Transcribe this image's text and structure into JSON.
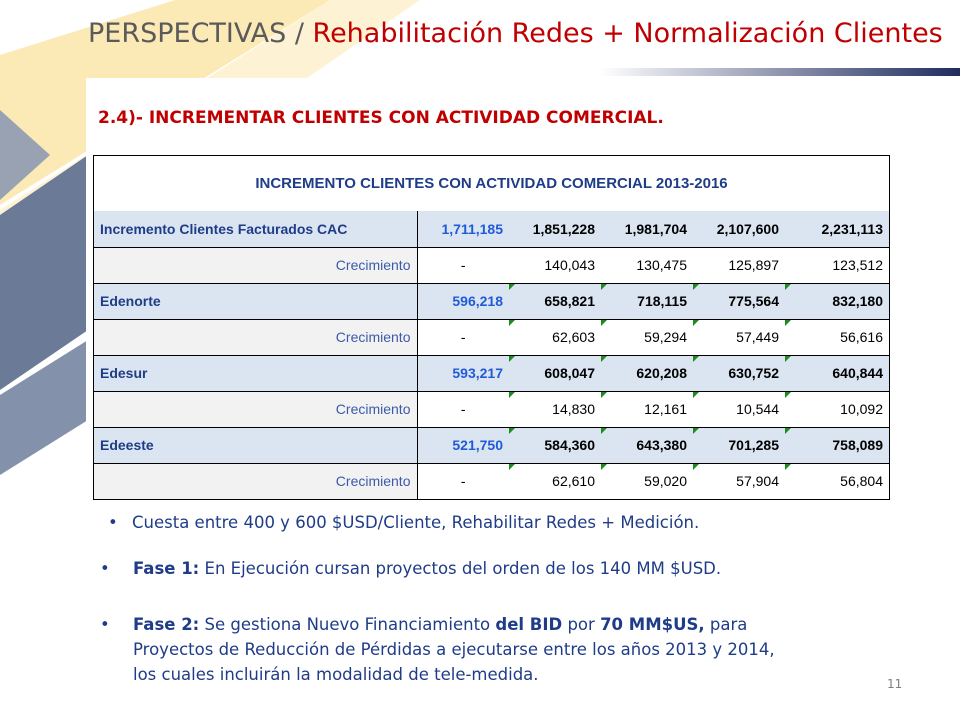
{
  "header": {
    "title_prefix": "PERSPECTIVAS",
    "title_sep": " / ",
    "title_main": "Rehabilitación Redes + Normalización Clientes"
  },
  "section": {
    "subtitle": "2.4)- INCREMENTAR CLIENTES CON ACTIVIDAD COMERCIAL."
  },
  "table": {
    "title": "INCREMENTO CLIENTES CON ACTIVIDAD COMERCIAL 2013-2016",
    "rows": [
      {
        "kind": "main",
        "label": "Incremento Clientes Facturados CAC",
        "values": [
          "1,711,185",
          "1,851,228",
          "1,981,704",
          "2,107,600",
          "2,231,113"
        ]
      },
      {
        "kind": "growth",
        "label": "Crecimiento",
        "values": [
          "-",
          "140,043",
          "130,475",
          "125,897",
          "123,512"
        ]
      },
      {
        "kind": "main",
        "label": "Edenorte",
        "values": [
          "596,218",
          "658,821",
          "718,115",
          "775,564",
          "832,180"
        ]
      },
      {
        "kind": "growth",
        "label": "Crecimiento",
        "values": [
          "-",
          "62,603",
          "59,294",
          "57,449",
          "56,616"
        ]
      },
      {
        "kind": "main",
        "label": "Edesur",
        "values": [
          "593,217",
          "608,047",
          "620,208",
          "630,752",
          "640,844"
        ]
      },
      {
        "kind": "growth",
        "label": "Crecimiento",
        "values": [
          "-",
          "14,830",
          "12,161",
          "10,544",
          "10,092"
        ]
      },
      {
        "kind": "main",
        "label": "Edeeste",
        "values": [
          "521,750",
          "584,360",
          "643,380",
          "701,285",
          "758,089"
        ]
      },
      {
        "kind": "growth",
        "label": "Crecimiento",
        "values": [
          "-",
          "62,610",
          "59,020",
          "57,904",
          "56,804"
        ]
      }
    ]
  },
  "bullets": {
    "b1": "Cuesta entre 400 y 600 $USD/Cliente, Rehabilitar Redes + Medición.",
    "b2_label": "Fase 1:",
    "b2_text": "  En Ejecución cursan proyectos  del orden de los 140 MM $USD.",
    "b3_label": "Fase 2:",
    "b3_t1": " Se gestiona Nuevo Financiamiento ",
    "b3_bold1": "del BID",
    "b3_t2": " por ",
    "b3_bold2": "70 MM$US,",
    "b3_t3": " para",
    "b3_line2": "Proyectos de Reducción de Pérdidas a ejecutarse entre los años 2013 y 2014,",
    "b3_line3": "los cuales incluirán  la modalidad de tele-medida."
  },
  "footer": {
    "page_number": "11"
  },
  "colors": {
    "title_red": "#c00000",
    "navy": "#1f3c88",
    "row_fill": "#dbe5f1",
    "marker_green": "#1f8a1f"
  }
}
